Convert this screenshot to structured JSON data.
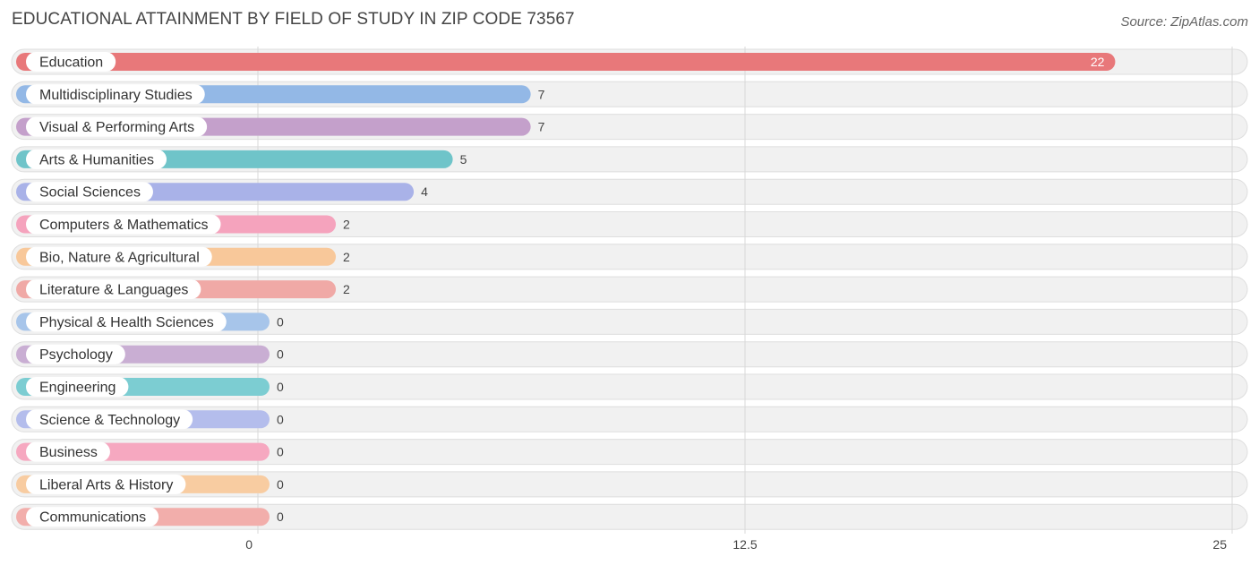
{
  "title": "EDUCATIONAL ATTAINMENT BY FIELD OF STUDY IN ZIP CODE 73567",
  "source": "Source: ZipAtlas.com",
  "chart_data": {
    "type": "bar",
    "orientation": "horizontal",
    "categories": [
      "Education",
      "Multidisciplinary Studies",
      "Visual & Performing Arts",
      "Arts & Humanities",
      "Social Sciences",
      "Computers & Mathematics",
      "Bio, Nature & Agricultural",
      "Literature & Languages",
      "Physical & Health Sciences",
      "Psychology",
      "Engineering",
      "Science & Technology",
      "Business",
      "Liberal Arts & History",
      "Communications"
    ],
    "values": [
      22,
      7,
      7,
      5,
      4,
      2,
      2,
      2,
      0,
      0,
      0,
      0,
      0,
      0,
      0
    ],
    "value_labels": [
      "22",
      "7",
      "7",
      "5",
      "4",
      "2",
      "2",
      "2",
      "0",
      "0",
      "0",
      "0",
      "0",
      "0",
      "0"
    ],
    "colors": [
      "#e8787a",
      "#93b8e6",
      "#c4a0cb",
      "#6fc4c9",
      "#a9b2e8",
      "#f5a3bd",
      "#f8c89a",
      "#f0a9a6",
      "#a7c5ea",
      "#c9aed3",
      "#7ccdd2",
      "#b4bdec",
      "#f6a8c0",
      "#f8cca1",
      "#f2aeab"
    ],
    "xlim": [
      0,
      25
    ],
    "xticks": [
      "0",
      "12.5",
      "25"
    ],
    "grid": true
  }
}
